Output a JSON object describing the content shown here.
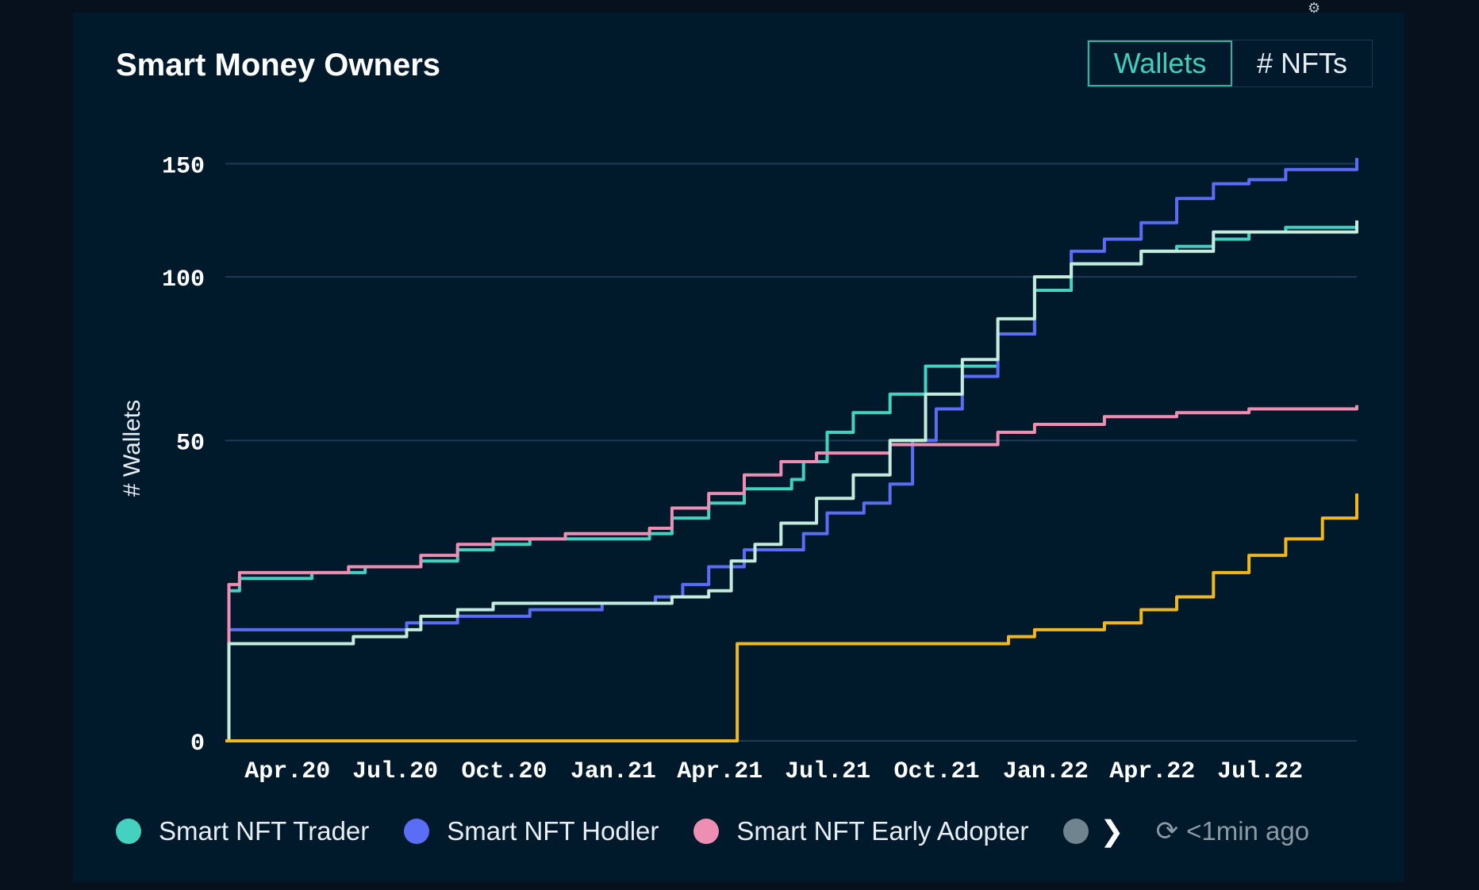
{
  "panel": {
    "title": "Smart Money Owners",
    "toggle": {
      "wallets_label": "Wallets",
      "nfts_label": "# NFTs",
      "active": "Wallets"
    },
    "corner_icon": "settings-icon"
  },
  "footer": {
    "refresh_icon": "refresh-icon",
    "updated_text": "<1min ago",
    "chevron": "❯"
  },
  "colors": {
    "background": "#001a2c",
    "gridline": "#1c3a52",
    "trader": "#44d1c0",
    "hodler": "#5b6cf5",
    "early_adopter": "#ee8eb3",
    "light_series": "#c4ecdd",
    "gold_series": "#f0b81e",
    "accent": "#2bb3a3"
  },
  "chart_data": {
    "type": "line",
    "ylabel": "# Wallets",
    "xlabel": "",
    "scale": "symlog",
    "yticks": [
      0,
      50,
      100,
      150
    ],
    "xticks": [
      "Apr.20",
      "Jul.20",
      "Oct.20",
      "Jan.21",
      "Apr.21",
      "Jul.21",
      "Oct.21",
      "Jan.22",
      "Apr.22",
      "Jul.22"
    ],
    "xlim": [
      "2020-02-18",
      "2022-09-30"
    ],
    "legend_position": "bottom",
    "series": [
      {
        "name": "Smart NFT Trader",
        "color": "#44d1c0",
        "points": [
          [
            "2020-02-18",
            0
          ],
          [
            "2020-02-21",
            20
          ],
          [
            "2020-03-01",
            22
          ],
          [
            "2020-05-01",
            23
          ],
          [
            "2020-06-15",
            24
          ],
          [
            "2020-08-01",
            25
          ],
          [
            "2020-09-01",
            27
          ],
          [
            "2020-10-01",
            28
          ],
          [
            "2020-11-01",
            29
          ],
          [
            "2021-01-15",
            29
          ],
          [
            "2021-02-10",
            30
          ],
          [
            "2021-03-01",
            33
          ],
          [
            "2021-04-01",
            36
          ],
          [
            "2021-05-01",
            39
          ],
          [
            "2021-06-10",
            41
          ],
          [
            "2021-06-20",
            45
          ],
          [
            "2021-07-10",
            52
          ],
          [
            "2021-08-01",
            57
          ],
          [
            "2021-09-01",
            62
          ],
          [
            "2021-10-01",
            70
          ],
          [
            "2021-11-01",
            70
          ],
          [
            "2021-12-01",
            80
          ],
          [
            "2022-01-01",
            95
          ],
          [
            "2022-02-01",
            105
          ],
          [
            "2022-04-01",
            110
          ],
          [
            "2022-05-01",
            112
          ],
          [
            "2022-06-01",
            115
          ],
          [
            "2022-07-01",
            118
          ],
          [
            "2022-08-01",
            120
          ],
          [
            "2022-09-30",
            123
          ]
        ]
      },
      {
        "name": "Smart NFT Hodler",
        "color": "#5b6cf5",
        "points": [
          [
            "2020-02-18",
            0
          ],
          [
            "2020-02-21",
            14
          ],
          [
            "2020-07-15",
            14
          ],
          [
            "2020-07-20",
            15
          ],
          [
            "2020-09-01",
            16
          ],
          [
            "2020-11-01",
            17
          ],
          [
            "2021-01-01",
            18
          ],
          [
            "2021-02-15",
            19
          ],
          [
            "2021-03-10",
            21
          ],
          [
            "2021-04-01",
            24
          ],
          [
            "2021-05-01",
            27
          ],
          [
            "2021-06-20",
            30
          ],
          [
            "2021-07-10",
            34
          ],
          [
            "2021-08-10",
            36
          ],
          [
            "2021-09-01",
            40
          ],
          [
            "2021-09-20",
            50
          ],
          [
            "2021-10-10",
            58
          ],
          [
            "2021-11-01",
            67
          ],
          [
            "2021-12-01",
            80
          ],
          [
            "2022-01-01",
            100
          ],
          [
            "2022-02-01",
            110
          ],
          [
            "2022-03-01",
            115
          ],
          [
            "2022-04-01",
            122
          ],
          [
            "2022-05-01",
            133
          ],
          [
            "2022-06-01",
            140
          ],
          [
            "2022-07-01",
            142
          ],
          [
            "2022-08-01",
            147
          ],
          [
            "2022-09-30",
            153
          ]
        ]
      },
      {
        "name": "Smart NFT Early Adopter",
        "color": "#ee8eb3",
        "points": [
          [
            "2020-02-18",
            0
          ],
          [
            "2020-02-21",
            21
          ],
          [
            "2020-03-01",
            23
          ],
          [
            "2020-06-01",
            24
          ],
          [
            "2020-08-01",
            26
          ],
          [
            "2020-09-01",
            28
          ],
          [
            "2020-10-01",
            29
          ],
          [
            "2020-12-01",
            30
          ],
          [
            "2021-02-10",
            31
          ],
          [
            "2021-03-01",
            35
          ],
          [
            "2021-04-01",
            38
          ],
          [
            "2021-05-01",
            42
          ],
          [
            "2021-06-01",
            45
          ],
          [
            "2021-07-01",
            47
          ],
          [
            "2021-08-01",
            47
          ],
          [
            "2021-09-01",
            49
          ],
          [
            "2021-10-01",
            49
          ],
          [
            "2021-11-01",
            49
          ],
          [
            "2021-12-01",
            52
          ],
          [
            "2022-01-01",
            54
          ],
          [
            "2022-03-01",
            56
          ],
          [
            "2022-05-01",
            57
          ],
          [
            "2022-07-01",
            58
          ],
          [
            "2022-09-30",
            59
          ]
        ]
      },
      {
        "name": "",
        "color": "#c4ecdd",
        "points": [
          [
            "2020-02-18",
            0
          ],
          [
            "2020-02-21",
            12
          ],
          [
            "2020-06-01",
            12
          ],
          [
            "2020-06-05",
            13
          ],
          [
            "2020-07-20",
            14
          ],
          [
            "2020-08-01",
            16
          ],
          [
            "2020-09-01",
            17
          ],
          [
            "2020-10-01",
            18
          ],
          [
            "2021-02-01",
            18
          ],
          [
            "2021-03-01",
            19
          ],
          [
            "2021-04-01",
            20
          ],
          [
            "2021-04-20",
            25
          ],
          [
            "2021-05-10",
            28
          ],
          [
            "2021-06-01",
            32
          ],
          [
            "2021-07-01",
            37
          ],
          [
            "2021-08-01",
            42
          ],
          [
            "2021-09-01",
            50
          ],
          [
            "2021-10-01",
            62
          ],
          [
            "2021-11-01",
            72
          ],
          [
            "2021-12-01",
            85
          ],
          [
            "2022-01-01",
            100
          ],
          [
            "2022-02-01",
            105
          ],
          [
            "2022-04-01",
            110
          ],
          [
            "2022-06-01",
            118
          ],
          [
            "2022-09-30",
            123
          ]
        ]
      },
      {
        "name": "",
        "color": "#f0b81e",
        "points": [
          [
            "2020-02-18",
            0
          ],
          [
            "2021-04-24",
            0
          ],
          [
            "2021-04-25",
            12
          ],
          [
            "2021-12-01",
            12
          ],
          [
            "2021-12-10",
            13
          ],
          [
            "2022-01-01",
            14
          ],
          [
            "2022-03-01",
            15
          ],
          [
            "2022-04-01",
            17
          ],
          [
            "2022-05-01",
            19
          ],
          [
            "2022-06-01",
            23
          ],
          [
            "2022-07-01",
            26
          ],
          [
            "2022-08-01",
            29
          ],
          [
            "2022-09-01",
            33
          ],
          [
            "2022-09-30",
            38
          ]
        ]
      }
    ]
  }
}
